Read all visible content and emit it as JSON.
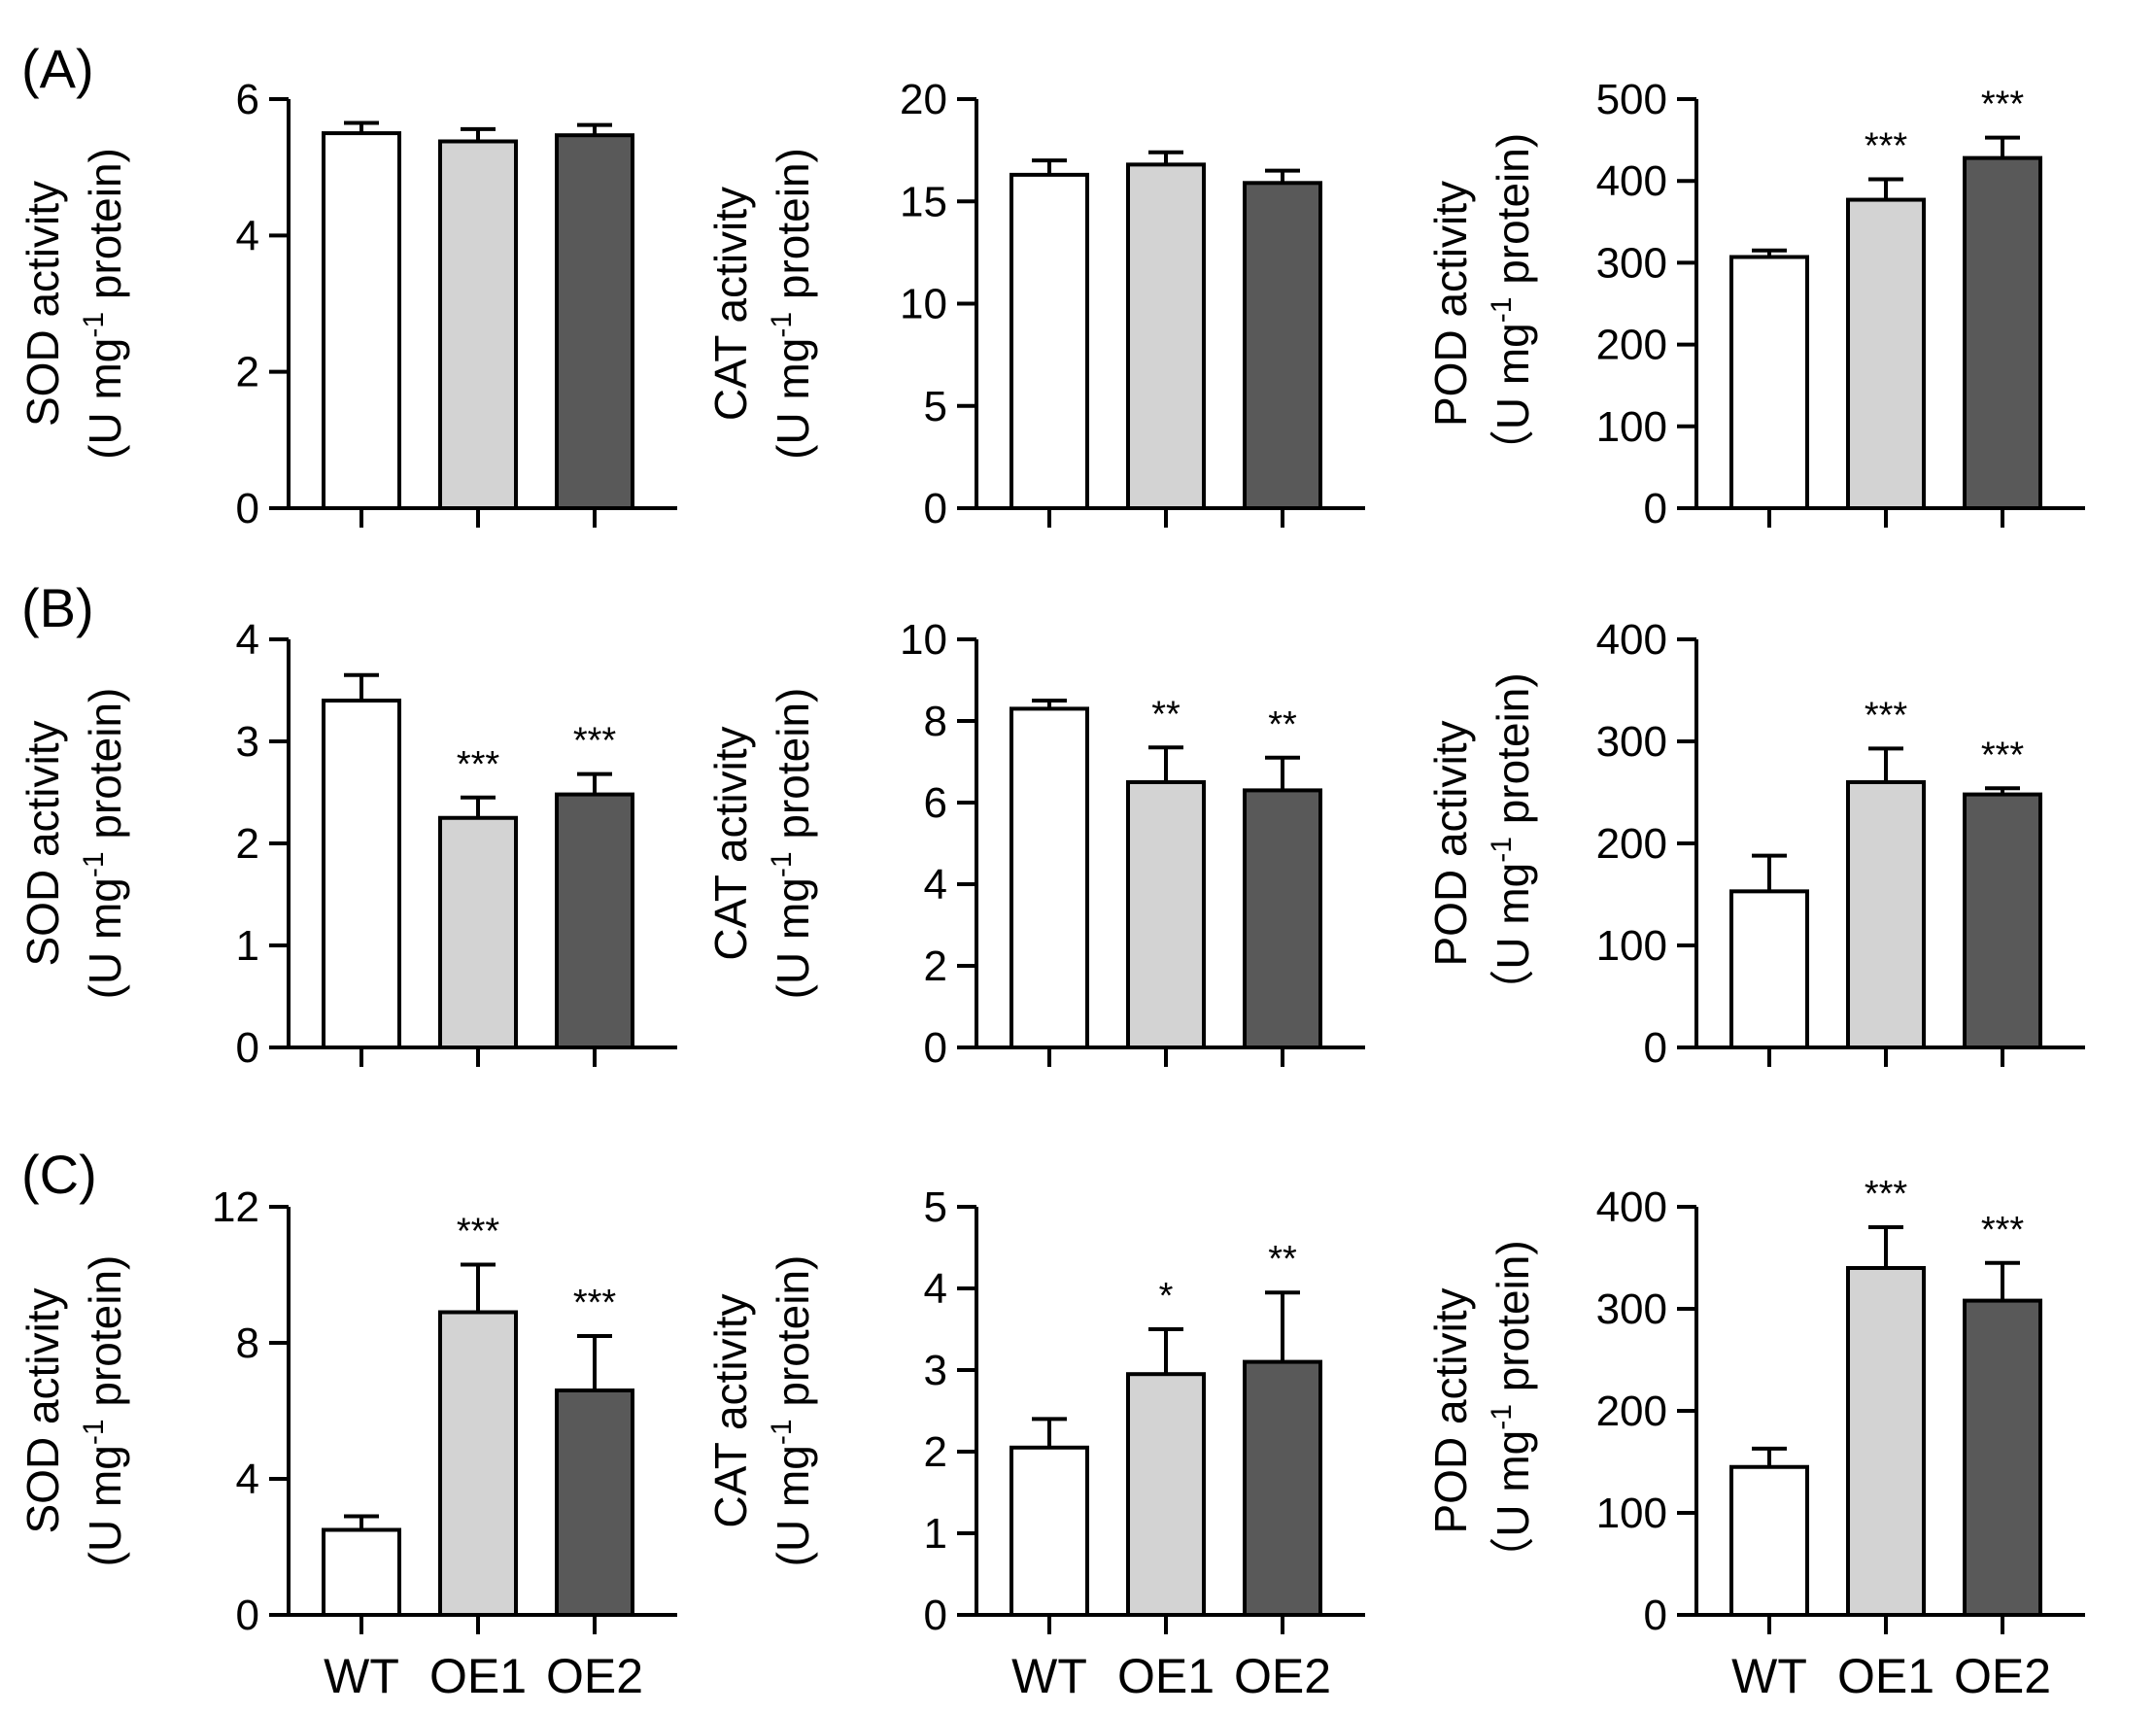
{
  "chart_data": {
    "type": "bar",
    "categories": [
      "WT",
      "OE1",
      "OE2"
    ],
    "colors": {
      "WT": "#ffffff",
      "OE1": "#d3d3d3",
      "OE2": "#595959"
    },
    "rows": [
      {
        "label": "(A)",
        "panels": [
          {
            "metric": "SOD activity",
            "unit_prefix": "(U mg",
            "unit_exp": "-1",
            "unit_suffix": " protein)",
            "ylim": [
              0,
              6
            ],
            "yticks": [
              "0",
              "2",
              "4",
              "6"
            ],
            "values": [
              5.5,
              5.38,
              5.47
            ],
            "errors": [
              0.15,
              0.18,
              0.15
            ],
            "significance": [
              "",
              "",
              ""
            ]
          },
          {
            "metric": "CAT activity",
            "unit_prefix": "(U mg",
            "unit_exp": "-1",
            "unit_suffix": " protein)",
            "ylim": [
              0,
              20
            ],
            "yticks": [
              "0",
              "5",
              "10",
              "15",
              "20"
            ],
            "values": [
              16.3,
              16.8,
              15.9
            ],
            "errors": [
              0.7,
              0.6,
              0.6
            ],
            "significance": [
              "",
              "",
              ""
            ]
          },
          {
            "metric": "POD activity",
            "unit_prefix": "（U mg",
            "unit_exp": "-1",
            "unit_suffix": " protein)",
            "ylim": [
              0,
              500
            ],
            "yticks": [
              "0",
              "100",
              "200",
              "300",
              "400",
              "500"
            ],
            "values": [
              307,
              377,
              428
            ],
            "errors": [
              8,
              25,
              25
            ],
            "significance": [
              "",
              "***",
              "***"
            ]
          }
        ]
      },
      {
        "label": "(B)",
        "panels": [
          {
            "metric": "SOD activity",
            "unit_prefix": "(U mg",
            "unit_exp": "-1",
            "unit_suffix": " protein)",
            "ylim": [
              0,
              4
            ],
            "yticks": [
              "0",
              "1",
              "2",
              "3",
              "4"
            ],
            "values": [
              3.4,
              2.25,
              2.48
            ],
            "errors": [
              0.25,
              0.2,
              0.2
            ],
            "significance": [
              "",
              "***",
              "***"
            ]
          },
          {
            "metric": "CAT activity",
            "unit_prefix": "(U mg",
            "unit_exp": "-1",
            "unit_suffix": " protein)",
            "ylim": [
              0,
              10
            ],
            "yticks": [
              "0",
              "2",
              "4",
              "6",
              "8",
              "10"
            ],
            "values": [
              8.3,
              6.5,
              6.3
            ],
            "errors": [
              0.2,
              0.85,
              0.8
            ],
            "significance": [
              "",
              "**",
              "**"
            ]
          },
          {
            "metric": "POD activity",
            "unit_prefix": "（U mg",
            "unit_exp": "-1",
            "unit_suffix": " protein)",
            "ylim": [
              0,
              400
            ],
            "yticks": [
              "0",
              "100",
              "200",
              "300",
              "400"
            ],
            "values": [
              153,
              260,
              248
            ],
            "errors": [
              35,
              33,
              6
            ],
            "significance": [
              "",
              "***",
              "***"
            ]
          }
        ]
      },
      {
        "label": "(C)",
        "panels": [
          {
            "metric": "SOD activity",
            "unit_prefix": "(U mg",
            "unit_exp": "-1",
            "unit_suffix": " protein)",
            "ylim": [
              0,
              12
            ],
            "yticks": [
              "0",
              "4",
              "8",
              "12"
            ],
            "values": [
              2.5,
              8.9,
              6.6
            ],
            "errors": [
              0.4,
              1.4,
              1.6
            ],
            "significance": [
              "",
              "***",
              "***"
            ]
          },
          {
            "metric": "CAT activity",
            "unit_prefix": "(U mg",
            "unit_exp": "-1",
            "unit_suffix": " protein)",
            "ylim": [
              0,
              5
            ],
            "yticks": [
              "0",
              "1",
              "2",
              "3",
              "4",
              "5"
            ],
            "values": [
              2.05,
              2.95,
              3.1
            ],
            "errors": [
              0.35,
              0.55,
              0.85
            ],
            "significance": [
              "",
              "*",
              "**"
            ]
          },
          {
            "metric": "POD activity",
            "unit_prefix": "（U mg",
            "unit_exp": "-1",
            "unit_suffix": " protein)",
            "ylim": [
              0,
              400
            ],
            "yticks": [
              "0",
              "100",
              "200",
              "300",
              "400"
            ],
            "values": [
              145,
              340,
              308
            ],
            "errors": [
              18,
              40,
              37
            ],
            "significance": [
              "",
              "***",
              "***"
            ]
          }
        ]
      }
    ]
  }
}
